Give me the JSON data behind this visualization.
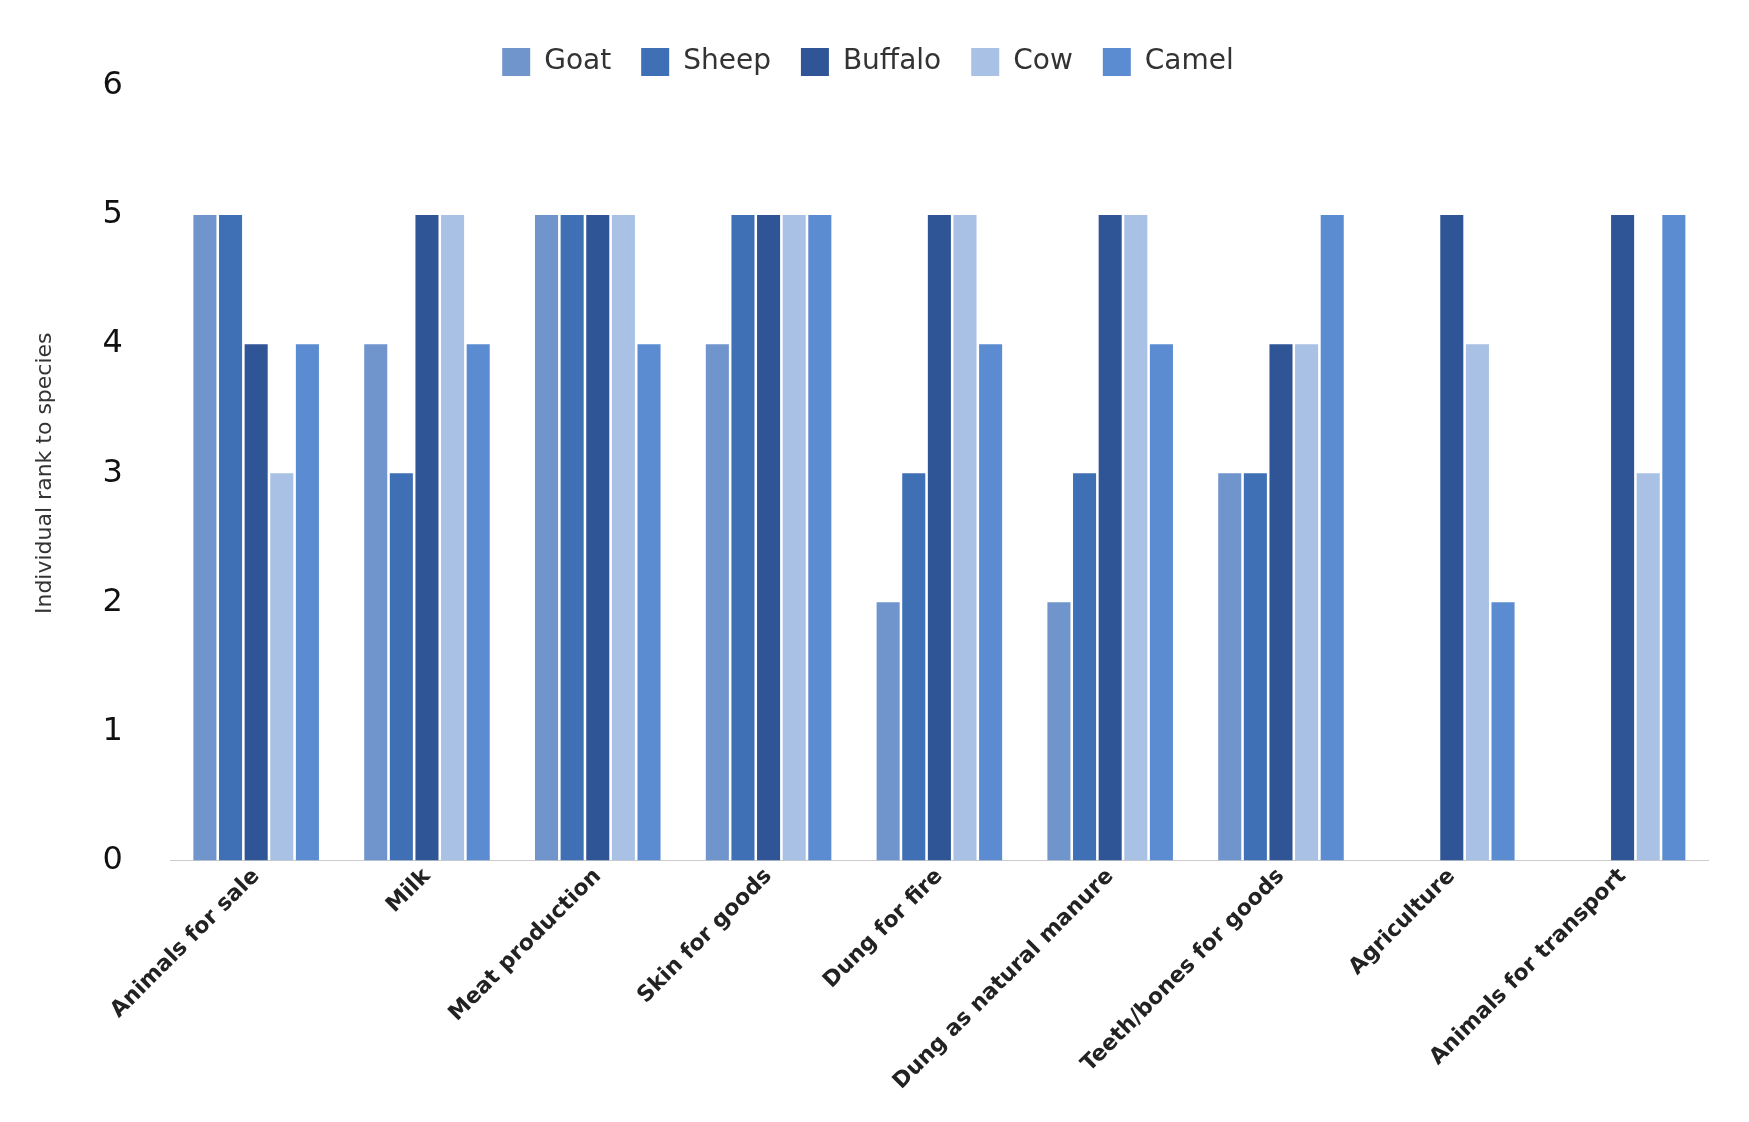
{
  "chart_data": {
    "type": "bar",
    "ylabel": "Individual rank to species",
    "categories": [
      "Animals for sale",
      "Milk",
      "Meat production",
      "Skin for goods",
      "Dung for fire",
      "Dung as natural manure",
      "Teeth/bones for goods",
      "Agriculture",
      "Animals for transport"
    ],
    "series": [
      {
        "name": "Goat",
        "color": "#6f95cc",
        "values": [
          5,
          4,
          5,
          4,
          2,
          2,
          3,
          null,
          null
        ]
      },
      {
        "name": "Sheep",
        "color": "#3f6fb5",
        "values": [
          5,
          3,
          5,
          5,
          3,
          3,
          3,
          null,
          null
        ]
      },
      {
        "name": "Buffalo",
        "color": "#2f5597",
        "values": [
          4,
          5,
          5,
          5,
          5,
          5,
          4,
          5,
          5
        ]
      },
      {
        "name": "Cow",
        "color": "#a9c1e4",
        "values": [
          3,
          5,
          5,
          5,
          5,
          5,
          4,
          4,
          3
        ]
      },
      {
        "name": "Camel",
        "color": "#5b8bd0",
        "values": [
          4,
          4,
          4,
          5,
          4,
          4,
          5,
          2,
          5
        ]
      }
    ],
    "ylim": [
      0,
      6
    ],
    "yticks": [
      0,
      1,
      2,
      3,
      4,
      5,
      6
    ],
    "grid": false,
    "legend": "top"
  }
}
